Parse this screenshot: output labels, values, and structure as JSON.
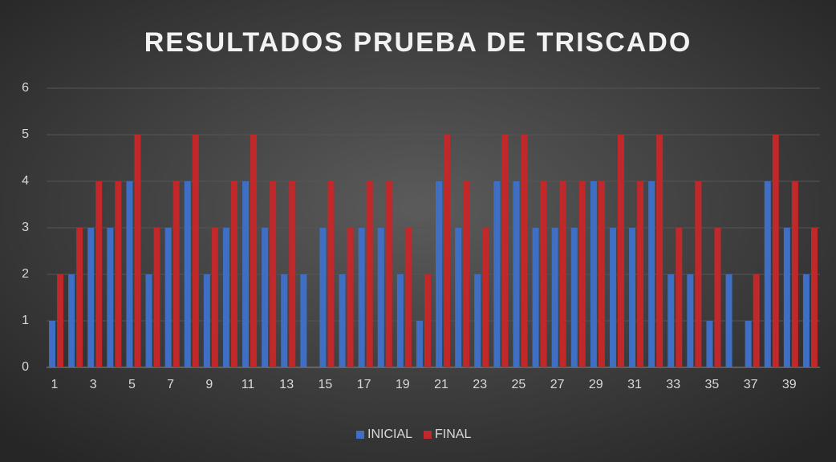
{
  "chart_data": {
    "type": "bar",
    "title": "RESULTADOS PRUEBA DE TRISCADO",
    "categories": [
      "1",
      null,
      "3",
      null,
      "5",
      null,
      "7",
      null,
      "9",
      null,
      "11",
      null,
      "13",
      null,
      "15",
      null,
      "17",
      null,
      "19",
      null,
      "21",
      null,
      "23",
      null,
      "25",
      null,
      "27",
      null,
      "29",
      null,
      "31",
      null,
      "33",
      null,
      "35",
      null,
      "37",
      null,
      "39",
      null
    ],
    "series": [
      {
        "name": "INICIAL",
        "color": "#3f6fc4",
        "values": [
          1,
          2,
          3,
          3,
          4,
          2,
          3,
          4,
          2,
          3,
          4,
          3,
          2,
          2,
          3,
          2,
          3,
          3,
          2,
          1,
          4,
          3,
          2,
          4,
          4,
          3,
          3,
          3,
          4,
          3,
          3,
          4,
          2,
          2,
          1,
          2,
          1,
          4,
          3,
          2
        ]
      },
      {
        "name": "FINAL",
        "color": "#c0282a",
        "values": [
          2,
          3,
          4,
          4,
          5,
          3,
          4,
          5,
          3,
          4,
          5,
          4,
          4,
          0,
          4,
          3,
          4,
          4,
          3,
          2,
          5,
          4,
          3,
          5,
          5,
          4,
          4,
          4,
          4,
          5,
          4,
          5,
          3,
          4,
          3,
          0,
          2,
          5,
          4,
          3
        ]
      }
    ],
    "ylim": [
      0,
      6
    ],
    "yticks": [
      0,
      1,
      2,
      3,
      4,
      5,
      6
    ],
    "grid": true,
    "legend": "bottom"
  }
}
